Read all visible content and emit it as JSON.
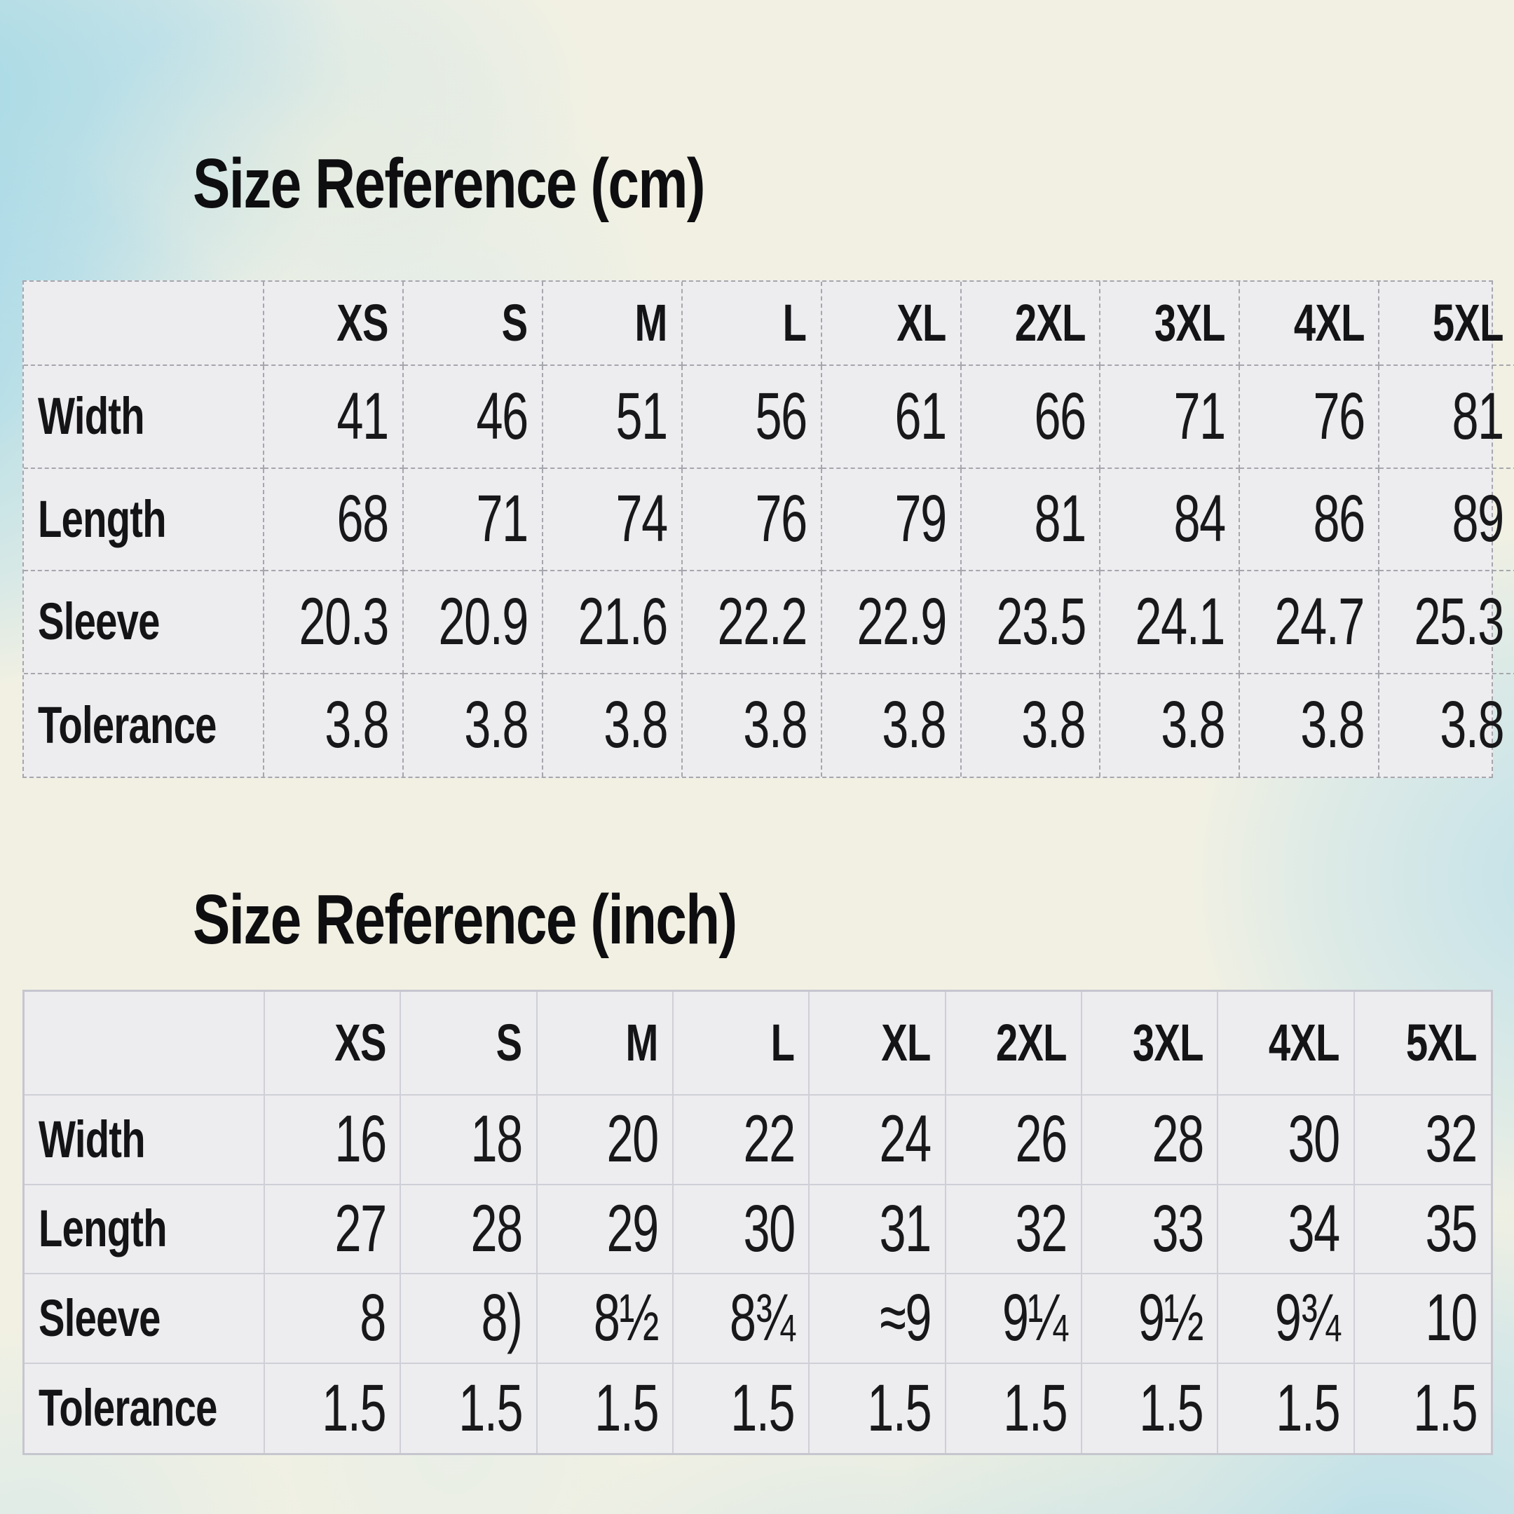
{
  "page": {
    "background_color": "#f1f0e3",
    "watercolor_blue": "#8fd2ea",
    "table_bg": "#edecef",
    "text_color": "#141417"
  },
  "tables": [
    {
      "id": "cm",
      "title": "Size Reference (cm)",
      "unit": "cm",
      "border_style": "dashed",
      "sizes": [
        "XS",
        "S",
        "M",
        "L",
        "XL",
        "2XL",
        "3XL",
        "4XL",
        "5XL"
      ],
      "rows": [
        {
          "label": "Width",
          "values": [
            "41",
            "46",
            "51",
            "56",
            "61",
            "66",
            "71",
            "76",
            "81"
          ]
        },
        {
          "label": "Length",
          "values": [
            "68",
            "71",
            "74",
            "76",
            "79",
            "81",
            "84",
            "86",
            "89"
          ]
        },
        {
          "label": "Sleeve",
          "values": [
            "20.3",
            "20.9",
            "21.6",
            "22.2",
            "22.9",
            "23.5",
            "24.1",
            "24.7",
            "25.3"
          ]
        },
        {
          "label": "Tolerance",
          "values": [
            "3.8",
            "3.8",
            "3.8",
            "3.8",
            "3.8",
            "3.8",
            "3.8",
            "3.8",
            "3.8"
          ]
        }
      ]
    },
    {
      "id": "inch",
      "title": "Size Reference (inch)",
      "unit": "inch",
      "border_style": "solid",
      "sizes": [
        "XS",
        "S",
        "M",
        "L",
        "XL",
        "2XL",
        "3XL",
        "4XL",
        "5XL"
      ],
      "rows": [
        {
          "label": "Width",
          "values": [
            "16",
            "18",
            "20",
            "22",
            "24",
            "26",
            "28",
            "30",
            "32"
          ]
        },
        {
          "label": "Length",
          "values": [
            "27",
            "28",
            "29",
            "30",
            "31",
            "32",
            "33",
            "34",
            "35"
          ]
        },
        {
          "label": "Sleeve",
          "values": [
            "8",
            "8)",
            "8½",
            "8¾",
            "≈9",
            "9¼",
            "9½",
            "9¾",
            "10"
          ]
        },
        {
          "label": "Tolerance",
          "values": [
            "1.5",
            "1.5",
            "1.5",
            "1.5",
            "1.5",
            "1.5",
            "1.5",
            "1.5",
            "1.5"
          ]
        }
      ]
    }
  ]
}
